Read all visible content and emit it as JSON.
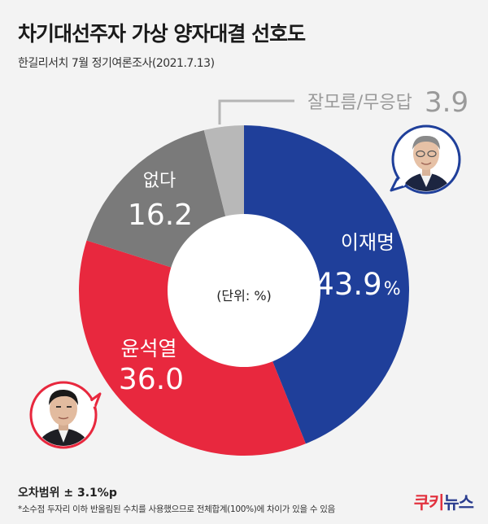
{
  "header": {
    "title": "차기대선주자 가상 양자대결 선호도",
    "subtitle": "한길리서치 7월 정기여론조사(2021.7.13)"
  },
  "chart_data": {
    "type": "pie",
    "donut": true,
    "center_label": "(단위: %)",
    "slices": [
      {
        "label": "이재명",
        "value": 43.9,
        "display": "43.9",
        "unit": "%",
        "color": "#1f3f9a"
      },
      {
        "label": "윤석열",
        "value": 36.0,
        "display": "36.0",
        "unit": "",
        "color": "#e8283e"
      },
      {
        "label": "없다",
        "value": 16.2,
        "display": "16.2",
        "unit": "",
        "color": "#7a7a7a"
      },
      {
        "label": "잘모름/무응답",
        "value": 3.9,
        "display": "3.9",
        "unit": "",
        "color": "#b8b8b8"
      }
    ]
  },
  "footer": {
    "margin_of_error": "오차범위 ± 3.1%p",
    "note": "*소수점 두자리 이하 반올림된 수치를 사용했으므로 전체합계(100%)에 차이가 있을 수 있음",
    "logo_part1": "쿠키",
    "logo_part2": "뉴스"
  },
  "icons": [
    "lee-jae-myung-avatar-icon",
    "yoon-seok-youl-avatar-icon"
  ]
}
